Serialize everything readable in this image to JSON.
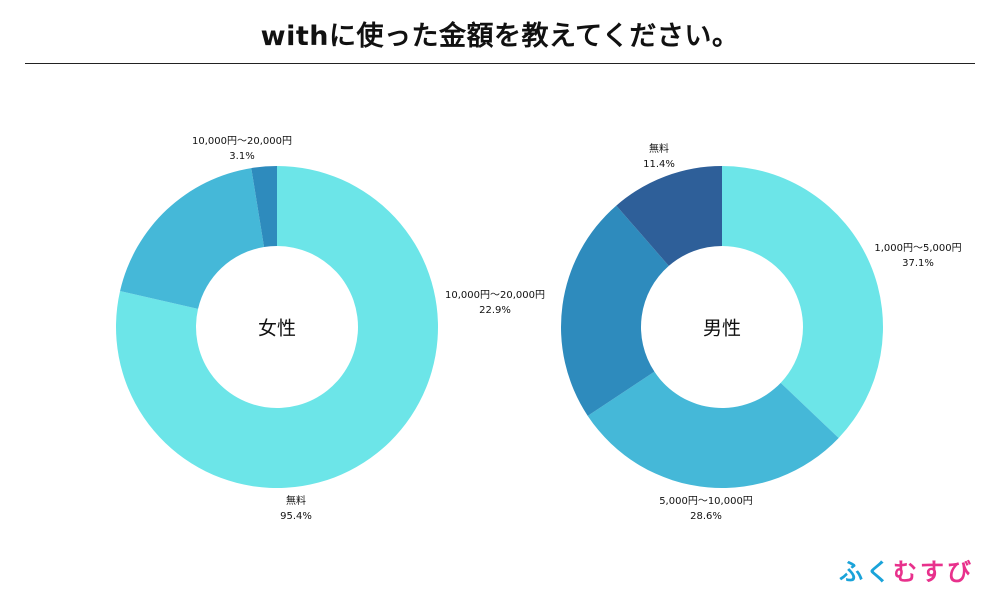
{
  "title": "withに使った金額を教えてください。",
  "logo": {
    "parts": [
      {
        "text": "ふく",
        "color": "#1aa3d9"
      },
      {
        "text": "むすび",
        "color": "#e8318c"
      }
    ]
  },
  "chart_data": [
    {
      "type": "pie",
      "center_label": "女性",
      "slices": [
        {
          "label": "無料",
          "value": 95.4,
          "color": "#6ce5e8"
        },
        {
          "label": "10,000円〜20,000円",
          "value": 22.9,
          "color": "#45b8d8"
        },
        {
          "label": "10,000円〜20,000円",
          "value": 3.1,
          "color": "#2e8bbd"
        }
      ],
      "value_suffix": "%"
    },
    {
      "type": "pie",
      "center_label": "男性",
      "slices": [
        {
          "label": "1,000円〜5,000円",
          "value": 37.1,
          "color": "#6ce5e8"
        },
        {
          "label": "5,000円〜10,000円",
          "value": 28.6,
          "color": "#45b8d8"
        },
        {
          "label": "",
          "value": 22.9,
          "color": "#2e8bbd"
        },
        {
          "label": "無料",
          "value": 11.4,
          "color": "#2e5f99"
        }
      ],
      "value_suffix": "%"
    }
  ]
}
